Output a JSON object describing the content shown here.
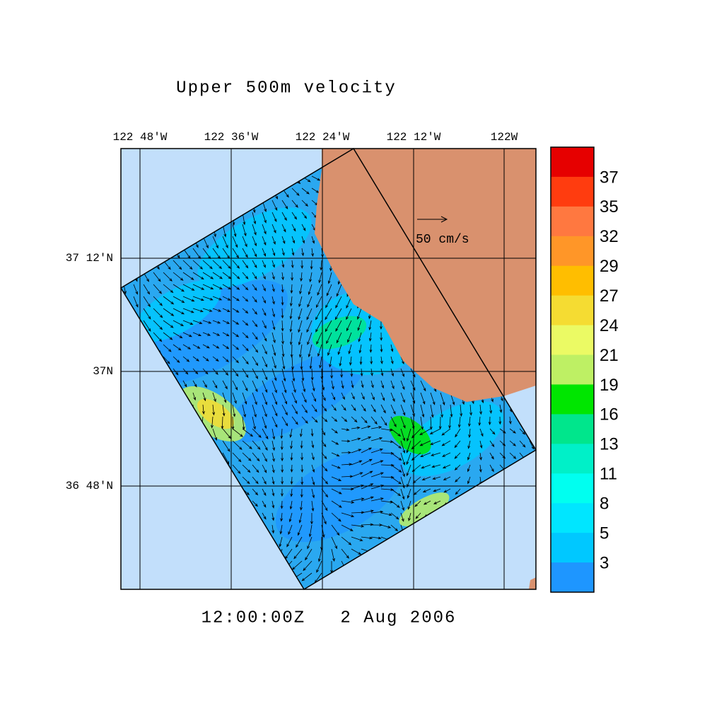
{
  "header": {
    "title": "Upper 500m velocity"
  },
  "map": {
    "lon_labels": [
      "122 48'W",
      "122 36'W",
      "122 24'W",
      "122 12'W",
      "122W"
    ],
    "lat_labels": [
      "37 12'N",
      "37N",
      "36 48'N"
    ],
    "scale_label": "50 cm/s",
    "timestamp": "12:00:00Z   2 Aug 2006"
  },
  "colorbar": {
    "labels": [
      "37",
      "35",
      "32",
      "29",
      "27",
      "24",
      "21",
      "19",
      "16",
      "13",
      "11",
      "8",
      "5",
      "3"
    ],
    "colors": [
      "#e60000",
      "#ff3c0f",
      "#ff7840",
      "#ff9628",
      "#ffbe00",
      "#f5dc32",
      "#ebfa64",
      "#bef064",
      "#00e600",
      "#00e68c",
      "#00f0c8",
      "#00fff0",
      "#00e6ff",
      "#00c8ff",
      "#1e96ff"
    ]
  }
}
